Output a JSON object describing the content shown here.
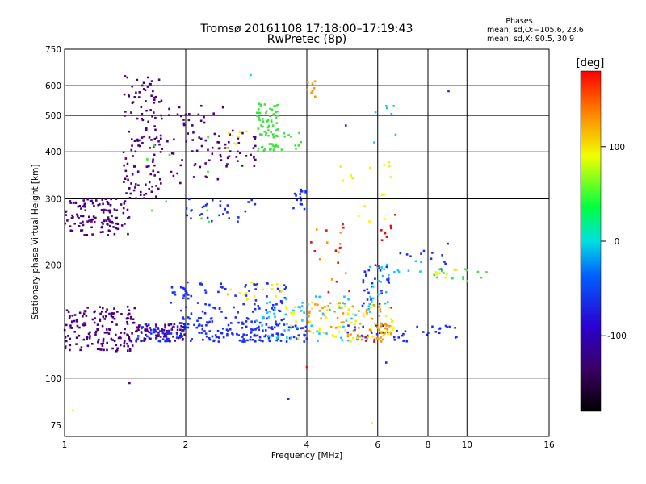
{
  "chart_data": {
    "type": "scatter",
    "title": "Tromsø 20161108 17:18:00–17:19:43",
    "subtitle": "RwPretec (8p)",
    "xlabel": "Frequency [MHz]",
    "ylabel": "Stationary phase Virtual Height [km]",
    "x_scale": "log",
    "y_scale": "log",
    "xlim": [
      1,
      16
    ],
    "ylim": [
      70,
      750
    ],
    "x_ticks": [
      1,
      2,
      4,
      6,
      8,
      10,
      16
    ],
    "x_tick_labels": [
      "1",
      "2",
      "4",
      "6",
      "8",
      "10",
      "16"
    ],
    "y_ticks": [
      75,
      100,
      200,
      300,
      400,
      500,
      600,
      750
    ],
    "y_tick_labels": [
      "75",
      "100",
      "200",
      "300",
      "400",
      "500",
      "600",
      "750"
    ],
    "grid": true,
    "colorbar": {
      "label": "[deg]",
      "range": [
        -180,
        180
      ],
      "ticks": [
        100,
        0,
        -100
      ],
      "tick_labels": [
        "100",
        "0",
        "-100"
      ],
      "colormap": "rainbow"
    },
    "stats": {
      "title": "Phases",
      "line1": "mean, sd,O:−105.6, 23.6",
      "line2": "mean, sd,X:  90.5, 30.9"
    },
    "colors": {
      "purple": "#4b0082",
      "blue": "#1a2dff",
      "cyan": "#10c8ff",
      "green": "#40e040",
      "yellow": "#f4f000",
      "orange": "#ff9400",
      "red": "#e01010"
    },
    "series": [
      {
        "color_key": "purple",
        "clusters": [
          [
            1.0,
            1.45,
            240,
            300,
            120
          ],
          [
            1.4,
            1.75,
            300,
            640,
            130
          ],
          [
            1.0,
            1.5,
            118,
            155,
            160
          ],
          [
            1.5,
            2.0,
            125,
            140,
            80
          ],
          [
            1.8,
            2.5,
            330,
            540,
            60
          ],
          [
            2.5,
            3.0,
            360,
            460,
            30
          ]
        ]
      },
      {
        "color_key": "blue",
        "clusters": [
          [
            1.5,
            4.0,
            125,
            140,
            180
          ],
          [
            1.8,
            3.6,
            140,
            180,
            110
          ],
          [
            2.0,
            3.0,
            260,
            300,
            30
          ],
          [
            3.7,
            4.0,
            280,
            320,
            15
          ],
          [
            5.0,
            9.5,
            125,
            140,
            40
          ],
          [
            5.5,
            6.5,
            150,
            200,
            30
          ],
          [
            6.8,
            9.5,
            185,
            235,
            12
          ]
        ]
      },
      {
        "color_key": "cyan",
        "clusters": [
          [
            3.0,
            5.8,
            125,
            165,
            60
          ],
          [
            5.7,
            6.4,
            150,
            200,
            20
          ],
          [
            6.2,
            8.0,
            190,
            205,
            8
          ],
          [
            5.8,
            7.0,
            400,
            530,
            6
          ]
        ]
      },
      {
        "color_key": "green",
        "clusters": [
          [
            3.0,
            3.4,
            400,
            540,
            70
          ],
          [
            1.6,
            2.3,
            260,
            440,
            10
          ],
          [
            3.4,
            3.9,
            400,
            450,
            10
          ],
          [
            8.0,
            12.0,
            180,
            195,
            15
          ]
        ]
      },
      {
        "color_key": "yellow",
        "clusters": [
          [
            3.5,
            6.6,
            125,
            160,
            70
          ],
          [
            2.5,
            3.5,
            160,
            180,
            15
          ],
          [
            4.8,
            6.5,
            250,
            380,
            15
          ],
          [
            2.5,
            3.0,
            400,
            480,
            8
          ],
          [
            7.8,
            9.5,
            185,
            195,
            8
          ]
        ]
      },
      {
        "color_key": "orange",
        "clusters": [
          [
            4.0,
            6.2,
            125,
            160,
            50
          ],
          [
            4.0,
            4.2,
            560,
            620,
            8
          ],
          [
            6.0,
            6.5,
            130,
            140,
            15
          ],
          [
            4.0,
            5.0,
            180,
            260,
            8
          ]
        ]
      },
      {
        "color_key": "red",
        "clusters": [
          [
            3.9,
            5.5,
            160,
            260,
            12
          ],
          [
            6.0,
            6.8,
            190,
            300,
            8
          ],
          [
            5.5,
            5.9,
            125,
            135,
            6
          ]
        ]
      }
    ],
    "points": [
      {
        "x": 1.05,
        "y": 82,
        "color_key": "yellow"
      },
      {
        "x": 1.45,
        "y": 97,
        "color_key": "purple"
      },
      {
        "x": 3.6,
        "y": 88,
        "color_key": "blue"
      },
      {
        "x": 4.0,
        "y": 107,
        "color_key": "red"
      },
      {
        "x": 5.8,
        "y": 76,
        "color_key": "yellow"
      },
      {
        "x": 6.3,
        "y": 110,
        "color_key": "blue"
      },
      {
        "x": 6.3,
        "y": 530,
        "color_key": "cyan"
      },
      {
        "x": 5.0,
        "y": 470,
        "color_key": "blue"
      },
      {
        "x": 9.0,
        "y": 580,
        "color_key": "blue"
      },
      {
        "x": 2.9,
        "y": 640,
        "color_key": "cyan"
      }
    ]
  }
}
